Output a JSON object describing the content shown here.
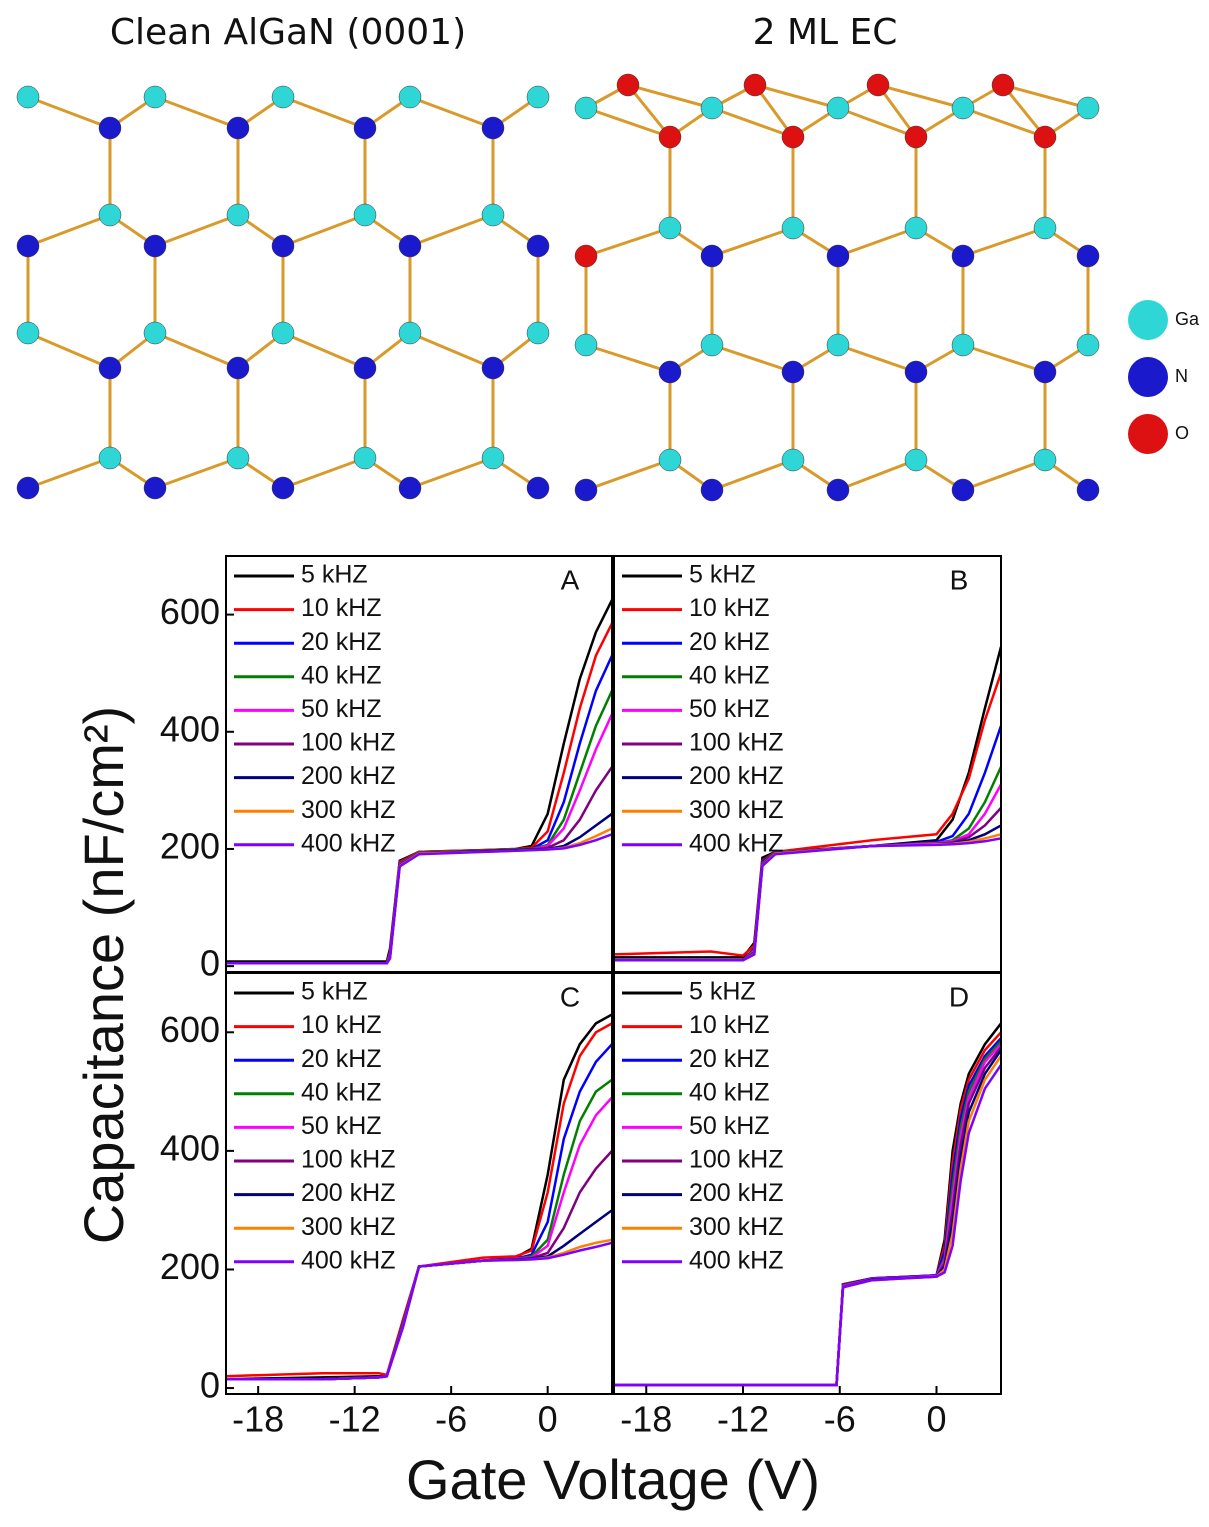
{
  "diagram": {
    "structures": [
      {
        "title": "Clean AlGaN (0001)"
      },
      {
        "title": "2 ML EC"
      }
    ],
    "legend": [
      "Ga",
      "N",
      "O"
    ]
  },
  "figure": {
    "xlabel": "Gate Voltage (V)",
    "ylabel": "Capacitance (nF/cm²)"
  },
  "chart_data": [
    {
      "type": "line",
      "label": "A",
      "xlim": [
        -20,
        4
      ],
      "ylim": [
        -10,
        700
      ],
      "yticks": [
        0,
        200,
        400,
        600
      ],
      "x": [
        -20,
        -14,
        -10,
        -9.8,
        -9.2,
        -8,
        -4,
        -2,
        -1,
        0,
        1,
        2,
        3,
        4
      ],
      "series": [
        {
          "name": "5 kHZ",
          "color": "#000000",
          "values": [
            8,
            8,
            8,
            30,
            180,
            195,
            198,
            200,
            205,
            260,
            380,
            490,
            570,
            625
          ]
        },
        {
          "name": "10 kHZ",
          "color": "#ff0000",
          "values": [
            5,
            5,
            5,
            25,
            178,
            195,
            198,
            200,
            202,
            230,
            330,
            440,
            530,
            585
          ]
        },
        {
          "name": "20 kHZ",
          "color": "#0000ff",
          "values": [
            5,
            5,
            5,
            22,
            176,
            194,
            197,
            199,
            200,
            215,
            280,
            380,
            470,
            530
          ]
        },
        {
          "name": "40 kHZ",
          "color": "#008000",
          "values": [
            5,
            5,
            5,
            20,
            175,
            194,
            197,
            199,
            200,
            207,
            250,
            330,
            410,
            470
          ]
        },
        {
          "name": "50 kHZ",
          "color": "#ff00ff",
          "values": [
            5,
            5,
            5,
            18,
            174,
            193,
            196,
            198,
            199,
            205,
            235,
            300,
            370,
            430
          ]
        },
        {
          "name": "100 kHZ",
          "color": "#800080",
          "values": [
            5,
            5,
            5,
            16,
            173,
            193,
            196,
            198,
            199,
            202,
            215,
            250,
            300,
            340
          ]
        },
        {
          "name": "200 kHZ",
          "color": "#000080",
          "values": [
            5,
            5,
            5,
            15,
            172,
            192,
            196,
            198,
            199,
            200,
            205,
            220,
            240,
            260
          ]
        },
        {
          "name": "300 kHZ",
          "color": "#ff8000",
          "values": [
            5,
            5,
            5,
            14,
            171,
            192,
            195,
            197,
            198,
            199,
            202,
            210,
            222,
            235
          ]
        },
        {
          "name": "400 kHZ",
          "color": "#8000ff",
          "values": [
            5,
            5,
            5,
            13,
            170,
            191,
            195,
            197,
            198,
            199,
            201,
            207,
            215,
            225
          ]
        }
      ]
    },
    {
      "type": "line",
      "label": "B",
      "xlim": [
        -20,
        4
      ],
      "ylim": [
        -10,
        700
      ],
      "x": [
        -20,
        -14,
        -12,
        -11.3,
        -10.8,
        -10,
        -4,
        0,
        1,
        2,
        3,
        4
      ],
      "series": [
        {
          "name": "5 kHZ",
          "color": "#000000",
          "values": [
            15,
            15,
            15,
            40,
            185,
            195,
            205,
            215,
            250,
            330,
            440,
            545
          ]
        },
        {
          "name": "10 kHZ",
          "color": "#ff0000",
          "values": [
            20,
            25,
            18,
            35,
            180,
            195,
            215,
            225,
            260,
            320,
            420,
            500
          ]
        },
        {
          "name": "20 kHZ",
          "color": "#0000ff",
          "values": [
            10,
            10,
            10,
            30,
            178,
            194,
            205,
            212,
            222,
            260,
            330,
            410
          ]
        },
        {
          "name": "40 kHZ",
          "color": "#008000",
          "values": [
            10,
            10,
            10,
            28,
            176,
            194,
            205,
            210,
            215,
            235,
            280,
            340
          ]
        },
        {
          "name": "50 kHZ",
          "color": "#ff00ff",
          "values": [
            10,
            10,
            10,
            26,
            175,
            193,
            205,
            210,
            213,
            225,
            260,
            310
          ]
        },
        {
          "name": "100 kHZ",
          "color": "#800080",
          "values": [
            10,
            10,
            10,
            24,
            174,
            193,
            205,
            209,
            211,
            220,
            240,
            270
          ]
        },
        {
          "name": "200 kHZ",
          "color": "#000080",
          "values": [
            10,
            10,
            10,
            22,
            173,
            192,
            205,
            208,
            210,
            215,
            225,
            240
          ]
        },
        {
          "name": "300 kHZ",
          "color": "#ff8000",
          "values": [
            10,
            10,
            10,
            21,
            172,
            192,
            205,
            208,
            209,
            212,
            218,
            225
          ]
        },
        {
          "name": "400 kHZ",
          "color": "#8000ff",
          "values": [
            10,
            10,
            10,
            20,
            171,
            191,
            205,
            207,
            208,
            210,
            213,
            218
          ]
        }
      ]
    },
    {
      "type": "line",
      "label": "C",
      "xlim": [
        -20,
        4
      ],
      "ylim": [
        -10,
        700
      ],
      "yticks": [
        0,
        200,
        400,
        600
      ],
      "xticks": [
        -18,
        -12,
        -6,
        0
      ],
      "x": [
        -20,
        -14,
        -10.5,
        -10,
        -9,
        -8,
        -4,
        -2,
        -1,
        0,
        1,
        2,
        3,
        4
      ],
      "series": [
        {
          "name": "5 kHZ",
          "color": "#000000",
          "values": [
            15,
            18,
            20,
            20,
            110,
            205,
            215,
            220,
            235,
            360,
            520,
            580,
            615,
            630
          ]
        },
        {
          "name": "10 kHZ",
          "color": "#ff0000",
          "values": [
            20,
            25,
            25,
            22,
            115,
            205,
            220,
            222,
            232,
            330,
            480,
            560,
            600,
            615
          ]
        },
        {
          "name": "20 kHZ",
          "color": "#0000ff",
          "values": [
            15,
            15,
            18,
            20,
            110,
            205,
            215,
            218,
            225,
            280,
            420,
            500,
            550,
            580
          ]
        },
        {
          "name": "40 kHZ",
          "color": "#008000",
          "values": [
            15,
            15,
            18,
            20,
            108,
            205,
            215,
            218,
            222,
            250,
            360,
            450,
            500,
            520
          ]
        },
        {
          "name": "50 kHZ",
          "color": "#ff00ff",
          "values": [
            15,
            15,
            18,
            20,
            106,
            205,
            215,
            218,
            220,
            240,
            330,
            410,
            460,
            490
          ]
        },
        {
          "name": "100 kHZ",
          "color": "#800080",
          "values": [
            15,
            15,
            18,
            20,
            105,
            205,
            215,
            217,
            219,
            228,
            270,
            330,
            370,
            400
          ]
        },
        {
          "name": "200 kHZ",
          "color": "#000080",
          "values": [
            15,
            15,
            18,
            20,
            104,
            205,
            215,
            217,
            218,
            222,
            240,
            260,
            280,
            300
          ]
        },
        {
          "name": "300 kHZ",
          "color": "#ff8000",
          "values": [
            15,
            15,
            18,
            20,
            103,
            205,
            215,
            216,
            217,
            220,
            228,
            238,
            245,
            250
          ]
        },
        {
          "name": "400 kHZ",
          "color": "#8000ff",
          "values": [
            15,
            15,
            18,
            20,
            102,
            205,
            215,
            216,
            217,
            219,
            225,
            232,
            238,
            245
          ]
        }
      ]
    },
    {
      "type": "line",
      "label": "D",
      "xlim": [
        -20,
        4
      ],
      "ylim": [
        -10,
        700
      ],
      "xticks": [
        -18,
        -12,
        -6,
        0
      ],
      "x": [
        -20,
        -10,
        -6.2,
        -5.8,
        -4,
        0,
        0.5,
        1,
        1.5,
        2,
        3,
        4
      ],
      "series": [
        {
          "name": "5 kHZ",
          "color": "#000000",
          "values": [
            5,
            5,
            5,
            175,
            185,
            190,
            250,
            400,
            480,
            530,
            580,
            615
          ]
        },
        {
          "name": "10 kHZ",
          "color": "#ff0000",
          "values": [
            5,
            5,
            5,
            175,
            185,
            190,
            240,
            380,
            470,
            520,
            570,
            600
          ]
        },
        {
          "name": "20 kHZ",
          "color": "#0000ff",
          "values": [
            5,
            5,
            5,
            174,
            185,
            190,
            230,
            360,
            455,
            510,
            560,
            590
          ]
        },
        {
          "name": "40 kHZ",
          "color": "#008000",
          "values": [
            5,
            5,
            5,
            173,
            184,
            189,
            220,
            340,
            440,
            500,
            555,
            585
          ]
        },
        {
          "name": "50 kHZ",
          "color": "#ff00ff",
          "values": [
            5,
            5,
            5,
            172,
            184,
            189,
            215,
            320,
            425,
            490,
            550,
            580
          ]
        },
        {
          "name": "100 kHZ",
          "color": "#800080",
          "values": [
            5,
            5,
            5,
            171,
            183,
            188,
            210,
            300,
            410,
            480,
            540,
            575
          ]
        },
        {
          "name": "200 kHZ",
          "color": "#000080",
          "values": [
            5,
            5,
            5,
            170,
            183,
            188,
            205,
            280,
            390,
            465,
            530,
            570
          ]
        },
        {
          "name": "300 kHZ",
          "color": "#ff8000",
          "values": [
            5,
            5,
            5,
            170,
            182,
            188,
            200,
            260,
            370,
            450,
            520,
            560
          ]
        },
        {
          "name": "400 kHZ",
          "color": "#8000ff",
          "values": [
            5,
            5,
            5,
            170,
            182,
            188,
            195,
            240,
            350,
            430,
            505,
            545
          ]
        }
      ]
    }
  ]
}
